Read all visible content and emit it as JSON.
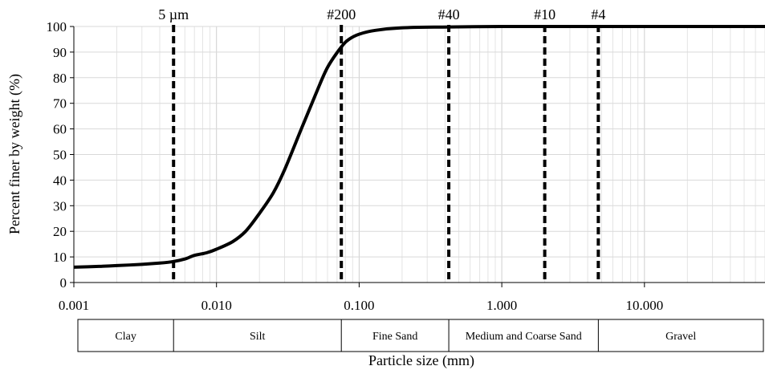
{
  "chart_data": {
    "type": "line",
    "xlabel": "Particle size (mm)",
    "ylabel": "Percent finer by weight (%)",
    "x_scale": "log",
    "xlim": [
      0.001,
      70
    ],
    "ylim": [
      0,
      100
    ],
    "grid": true,
    "x_tick_labels": [
      "0.001",
      "0.010",
      "0.100",
      "1.000",
      "10.000"
    ],
    "x_tick_values": [
      0.001,
      0.01,
      0.1,
      1,
      10
    ],
    "y_tick_values": [
      0,
      10,
      20,
      30,
      40,
      50,
      60,
      70,
      80,
      90,
      100
    ],
    "series": [
      {
        "x": [
          0.001,
          0.0015,
          0.002,
          0.003,
          0.004,
          0.005,
          0.006,
          0.007,
          0.0085,
          0.01,
          0.013,
          0.016,
          0.02,
          0.025,
          0.03,
          0.04,
          0.05,
          0.06,
          0.075,
          0.085,
          0.1,
          0.13,
          0.2,
          0.425,
          1,
          2,
          4.75,
          10,
          70
        ],
        "y": [
          6,
          6.3,
          6.6,
          7.1,
          7.6,
          8.2,
          9.2,
          10.6,
          11.6,
          13,
          16,
          20,
          27,
          35,
          44,
          61,
          74,
          84,
          92,
          95,
          97,
          98.5,
          99.5,
          99.8,
          100,
          100,
          100,
          100,
          100
        ]
      }
    ],
    "reference_lines": [
      {
        "label": "5 µm",
        "x": 0.005
      },
      {
        "label": "#200",
        "x": 0.075
      },
      {
        "label": "#40",
        "x": 0.425
      },
      {
        "label": "#10",
        "x": 2.0
      },
      {
        "label": "#4",
        "x": 4.75
      }
    ],
    "soil_bands": [
      {
        "label": "Clay",
        "from": 0.001,
        "to": 0.005
      },
      {
        "label": "Silt",
        "from": 0.005,
        "to": 0.075
      },
      {
        "label": "Fine Sand",
        "from": 0.075,
        "to": 0.425
      },
      {
        "label": "Medium and Coarse Sand",
        "from": 0.425,
        "to": 4.75
      },
      {
        "label": "Gravel",
        "from": 4.75,
        "to": 70
      }
    ],
    "line_color": "#000000"
  }
}
